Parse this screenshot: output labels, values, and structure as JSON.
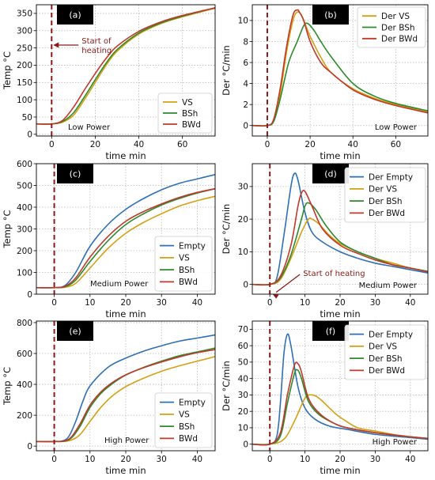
{
  "colors": {
    "Empty": "#2f6fb3",
    "VS": "#d4a012",
    "BSh": "#2c8a2c",
    "BWd": "#c0392b",
    "heating_line": "#8b1a1a",
    "annotation": "#8b1a1a",
    "label_box": "#000000"
  },
  "chart_data": [
    {
      "panel": "(a)",
      "type": "line",
      "xlabel": "time min",
      "ylabel": "Temp °C",
      "xlim": [
        -7,
        75
      ],
      "ylim": [
        -5,
        375
      ],
      "xticks": [
        0,
        20,
        40,
        60
      ],
      "yticks": [
        0,
        50,
        100,
        150,
        200,
        250,
        300,
        350
      ],
      "power_text": "Low Power",
      "legend_position": "lower-right",
      "annotation": "Start of\nheating",
      "series": [
        {
          "name": "VS",
          "color_key": "VS",
          "x": [
            -7,
            0,
            5,
            10,
            15,
            20,
            25,
            30,
            40,
            50,
            60,
            75
          ],
          "y": [
            30,
            30,
            35,
            55,
            100,
            150,
            200,
            240,
            290,
            320,
            340,
            365
          ]
        },
        {
          "name": "BSh",
          "color_key": "BSh",
          "x": [
            -7,
            0,
            5,
            10,
            15,
            20,
            25,
            30,
            40,
            50,
            60,
            75
          ],
          "y": [
            30,
            30,
            37,
            62,
            108,
            158,
            206,
            245,
            293,
            322,
            342,
            366
          ]
        },
        {
          "name": "BWd",
          "color_key": "BWd",
          "x": [
            -7,
            0,
            5,
            10,
            15,
            20,
            25,
            30,
            40,
            50,
            60,
            75
          ],
          "y": [
            30,
            30,
            40,
            78,
            128,
            176,
            220,
            255,
            298,
            325,
            344,
            366
          ]
        }
      ]
    },
    {
      "panel": "(b)",
      "type": "line",
      "xlabel": "time min",
      "ylabel": "Der °C/min",
      "xlim": [
        -7,
        75
      ],
      "ylim": [
        -1,
        11.5
      ],
      "xticks": [
        0,
        20,
        40,
        60
      ],
      "yticks": [
        0,
        2,
        4,
        6,
        8,
        10
      ],
      "power_text": "Low Power",
      "legend_position": "upper-right",
      "series": [
        {
          "name": "Der VS",
          "color_key": "VS",
          "x": [
            -7,
            0,
            3,
            6,
            9,
            12,
            14,
            16,
            18,
            20,
            25,
            30,
            40,
            50,
            60,
            75
          ],
          "y": [
            0,
            0,
            0.5,
            3,
            7,
            10,
            10.8,
            10.5,
            9.5,
            8.5,
            6.5,
            5,
            3.5,
            2.6,
            2,
            1.3
          ]
        },
        {
          "name": "Der BSh",
          "color_key": "BSh",
          "x": [
            -7,
            0,
            3,
            6,
            10,
            14,
            17,
            19,
            22,
            25,
            30,
            40,
            50,
            60,
            75
          ],
          "y": [
            0,
            0,
            0.4,
            2.5,
            6,
            8,
            9.5,
            9.7,
            9,
            8,
            6.5,
            4,
            2.8,
            2.1,
            1.4
          ]
        },
        {
          "name": "Der BWd",
          "color_key": "BWd",
          "x": [
            -7,
            0,
            3,
            6,
            9,
            12,
            14,
            15,
            17,
            20,
            25,
            30,
            40,
            50,
            60,
            75
          ],
          "y": [
            0,
            0,
            0.6,
            3.5,
            7.5,
            10.5,
            11,
            10.8,
            10,
            8,
            6,
            5,
            3.4,
            2.5,
            1.9,
            1.2
          ]
        }
      ]
    },
    {
      "panel": "(c)",
      "type": "line",
      "xlabel": "time min",
      "ylabel": "Temp °C",
      "xlim": [
        -5,
        45
      ],
      "ylim": [
        0,
        600
      ],
      "xticks": [
        0,
        10,
        20,
        30,
        40
      ],
      "yticks": [
        0,
        100,
        200,
        300,
        400,
        500,
        600
      ],
      "power_text": "Medium Power",
      "legend_position": "lower-right",
      "series": [
        {
          "name": "Empty",
          "color_key": "Empty",
          "x": [
            -5,
            0,
            3,
            6,
            10,
            15,
            20,
            25,
            30,
            35,
            40,
            45
          ],
          "y": [
            30,
            30,
            40,
            100,
            220,
            320,
            390,
            440,
            480,
            510,
            530,
            550
          ]
        },
        {
          "name": "VS",
          "color_key": "VS",
          "x": [
            -5,
            0,
            3,
            6,
            10,
            15,
            20,
            25,
            30,
            35,
            40,
            45
          ],
          "y": [
            30,
            30,
            32,
            50,
            120,
            210,
            280,
            330,
            370,
            405,
            430,
            450
          ]
        },
        {
          "name": "BSh",
          "color_key": "BSh",
          "x": [
            -5,
            0,
            3,
            6,
            10,
            15,
            20,
            25,
            30,
            35,
            40,
            45
          ],
          "y": [
            30,
            30,
            34,
            65,
            150,
            245,
            320,
            370,
            410,
            440,
            465,
            485
          ]
        },
        {
          "name": "BWd",
          "color_key": "BWd",
          "x": [
            -5,
            0,
            3,
            6,
            10,
            15,
            20,
            25,
            30,
            35,
            40,
            45
          ],
          "y": [
            30,
            30,
            36,
            75,
            170,
            265,
            335,
            380,
            415,
            445,
            468,
            485
          ]
        }
      ]
    },
    {
      "panel": "(d)",
      "type": "line",
      "xlabel": "time min",
      "ylabel": "Der °C/min",
      "xlim": [
        -5,
        45
      ],
      "ylim": [
        -3,
        37
      ],
      "xticks": [
        0,
        10,
        20,
        30,
        40
      ],
      "yticks": [
        0,
        10,
        20,
        30
      ],
      "power_text": "Medium Power",
      "legend_position": "upper-right",
      "annotation": "Start of heating",
      "series": [
        {
          "name": "Der Empty",
          "color_key": "Empty",
          "x": [
            -5,
            0,
            2,
            4,
            6,
            7,
            8,
            10,
            12,
            15,
            20,
            25,
            30,
            35,
            40,
            45
          ],
          "y": [
            0,
            0,
            2,
            15,
            30,
            34,
            32,
            22,
            16,
            13,
            10,
            8,
            6.5,
            5.5,
            4.5,
            3.5
          ]
        },
        {
          "name": "Der VS",
          "color_key": "VS",
          "x": [
            -5,
            0,
            3,
            6,
            9,
            11,
            12,
            14,
            17,
            20,
            25,
            30,
            35,
            40,
            45
          ],
          "y": [
            0,
            0,
            1.5,
            8,
            16,
            20,
            20,
            18.5,
            15,
            12.5,
            10,
            8,
            6.5,
            5,
            4
          ]
        },
        {
          "name": "Der BSh",
          "color_key": "BSh",
          "x": [
            -5,
            0,
            3,
            6,
            9,
            10,
            11,
            13,
            16,
            20,
            25,
            30,
            35,
            40,
            45
          ],
          "y": [
            0,
            0,
            2,
            9,
            20,
            24,
            25,
            23,
            18,
            13,
            10,
            8,
            6,
            5,
            4
          ]
        },
        {
          "name": "Der BWd",
          "color_key": "BWd",
          "x": [
            -5,
            0,
            3,
            6,
            8,
            9,
            10,
            12,
            15,
            20,
            25,
            30,
            35,
            40,
            45
          ],
          "y": [
            0,
            0,
            2.5,
            12,
            24,
            28,
            28.5,
            24,
            17,
            12,
            9.5,
            7.5,
            6,
            5,
            3.8
          ]
        }
      ]
    },
    {
      "panel": "(e)",
      "type": "line",
      "xlabel": "time min",
      "ylabel": "Temp °C",
      "xlim": [
        -5,
        45
      ],
      "ylim": [
        -30,
        810
      ],
      "xticks": [
        0,
        10,
        20,
        30,
        40
      ],
      "yticks": [
        0,
        200,
        400,
        600,
        800
      ],
      "power_text": "High Power",
      "legend_position": "lower-right",
      "series": [
        {
          "name": "Empty",
          "color_key": "Empty",
          "x": [
            -5,
            0,
            2,
            4,
            6,
            8,
            10,
            15,
            20,
            25,
            30,
            35,
            40,
            45
          ],
          "y": [
            30,
            30,
            32,
            60,
            160,
            290,
            390,
            510,
            570,
            615,
            650,
            680,
            700,
            720
          ]
        },
        {
          "name": "VS",
          "color_key": "VS",
          "x": [
            -5,
            0,
            4,
            7,
            10,
            13,
            16,
            20,
            25,
            30,
            35,
            40,
            45
          ],
          "y": [
            30,
            30,
            34,
            70,
            160,
            250,
            320,
            385,
            440,
            485,
            520,
            550,
            580
          ]
        },
        {
          "name": "BSh",
          "color_key": "BSh",
          "x": [
            -5,
            0,
            4,
            7,
            10,
            13,
            16,
            20,
            25,
            30,
            35,
            40,
            45
          ],
          "y": [
            30,
            30,
            40,
            120,
            250,
            340,
            400,
            460,
            510,
            550,
            585,
            610,
            635
          ]
        },
        {
          "name": "BWd",
          "color_key": "BWd",
          "x": [
            -5,
            0,
            4,
            7,
            10,
            13,
            16,
            20,
            25,
            30,
            35,
            40,
            45
          ],
          "y": [
            30,
            30,
            44,
            135,
            265,
            350,
            408,
            462,
            508,
            545,
            578,
            605,
            625
          ]
        }
      ]
    },
    {
      "panel": "(f)",
      "type": "line",
      "xlabel": "time min",
      "ylabel": "Der °C/min",
      "xlim": [
        -5,
        45
      ],
      "ylim": [
        -4,
        75
      ],
      "xticks": [
        0,
        10,
        20,
        30,
        40
      ],
      "yticks": [
        0,
        10,
        20,
        30,
        40,
        50,
        60,
        70
      ],
      "power_text": "High Power",
      "legend_position": "upper-right",
      "series": [
        {
          "name": "Der Empty",
          "color_key": "Empty",
          "x": [
            -5,
            0,
            2,
            3,
            4,
            5,
            6,
            8,
            10,
            13,
            17,
            22,
            30,
            40,
            45
          ],
          "y": [
            0,
            0,
            5,
            25,
            55,
            67,
            60,
            35,
            22,
            15,
            11,
            9,
            6,
            4,
            3
          ]
        },
        {
          "name": "Der VS",
          "color_key": "VS",
          "x": [
            -5,
            0,
            4,
            7,
            10,
            12,
            14,
            17,
            19,
            21,
            25,
            30,
            35,
            40,
            45
          ],
          "y": [
            0,
            0,
            3,
            14,
            28,
            30,
            28,
            22,
            18,
            15,
            10,
            8,
            6,
            4.5,
            3.5
          ]
        },
        {
          "name": "Der BSh",
          "color_key": "BSh",
          "x": [
            -5,
            0,
            3,
            5,
            7,
            8,
            9,
            11,
            14,
            18,
            22,
            30,
            40,
            45
          ],
          "y": [
            0,
            0,
            5,
            25,
            43,
            45,
            40,
            26,
            18,
            13,
            10,
            7,
            4.5,
            3.5
          ]
        },
        {
          "name": "Der BWd",
          "color_key": "BWd",
          "x": [
            -5,
            0,
            3,
            5,
            7,
            8,
            9,
            11,
            14,
            18,
            22,
            30,
            40,
            45
          ],
          "y": [
            0,
            0,
            7,
            30,
            48,
            49,
            44,
            28,
            19,
            13,
            10,
            7,
            4.5,
            3.5
          ]
        }
      ]
    }
  ]
}
